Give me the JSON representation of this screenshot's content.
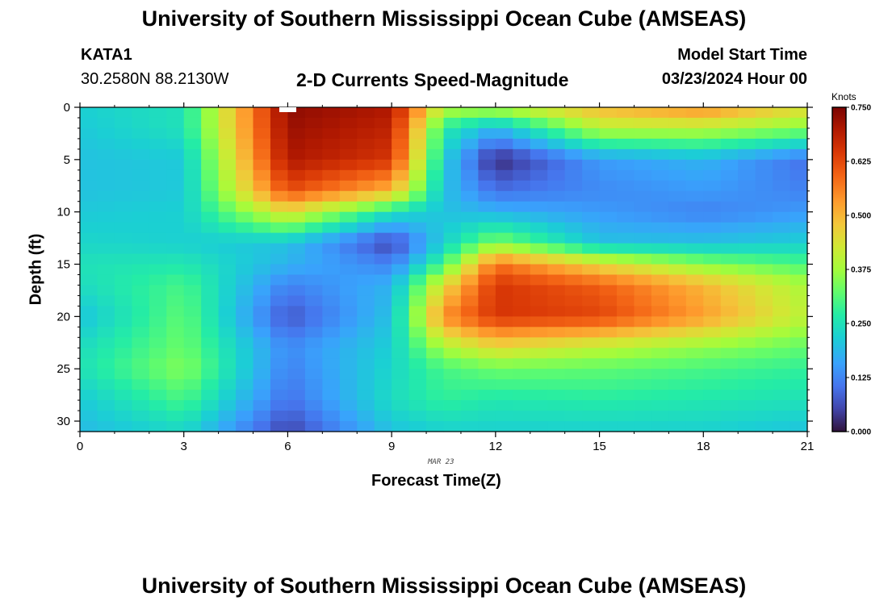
{
  "title": "University of Southern Mississippi Ocean Cube (AMSEAS)",
  "footer_title": "University of Southern Mississippi Ocean Cube (AMSEAS)",
  "station": {
    "name": "KATA1",
    "coords": "30.2580N  88.2130W"
  },
  "model_start": {
    "label": "Model Start Time",
    "value": "03/23/2024 Hour 00"
  },
  "chart_data": {
    "type": "heatmap",
    "title": "2-D Currents Speed-Magnitude",
    "xlabel": "Forecast Time(Z)",
    "ylabel": "Depth (ft)",
    "x_date_label": "MAR 23",
    "xlim": [
      0,
      21
    ],
    "ylim": [
      0,
      31
    ],
    "y_inverted": true,
    "x_ticks": [
      0,
      3,
      6,
      9,
      12,
      15,
      18,
      21
    ],
    "y_ticks": [
      0,
      5,
      10,
      15,
      20,
      25,
      30
    ],
    "colorbar": {
      "unit": "Knots",
      "min": 0.0,
      "max": 0.75,
      "ticks": [
        "0.000",
        "0.125",
        "0.250",
        "0.375",
        "0.500",
        "0.625",
        "0.750"
      ]
    },
    "x_hours": [
      0,
      3,
      6,
      9,
      10.5,
      12,
      15,
      18,
      21
    ],
    "depths_ft": [
      0,
      2,
      5,
      8,
      10,
      13,
      15,
      17,
      20,
      23,
      25,
      28,
      31
    ],
    "speed_knots": [
      [
        0.22,
        0.25,
        0.73,
        0.7,
        0.4,
        0.4,
        0.5,
        0.55,
        0.45
      ],
      [
        0.21,
        0.25,
        0.72,
        0.68,
        0.27,
        0.18,
        0.4,
        0.4,
        0.35
      ],
      [
        0.2,
        0.21,
        0.7,
        0.65,
        0.22,
        0.02,
        0.15,
        0.18,
        0.1
      ],
      [
        0.2,
        0.21,
        0.62,
        0.5,
        0.2,
        0.1,
        0.13,
        0.15,
        0.12
      ],
      [
        0.21,
        0.22,
        0.45,
        0.25,
        0.2,
        0.18,
        0.15,
        0.12,
        0.15
      ],
      [
        0.23,
        0.22,
        0.2,
        0.05,
        0.22,
        0.35,
        0.2,
        0.2,
        0.22
      ],
      [
        0.25,
        0.26,
        0.18,
        0.12,
        0.3,
        0.58,
        0.45,
        0.35,
        0.3
      ],
      [
        0.24,
        0.3,
        0.12,
        0.18,
        0.45,
        0.65,
        0.6,
        0.5,
        0.38
      ],
      [
        0.2,
        0.32,
        0.07,
        0.2,
        0.55,
        0.65,
        0.63,
        0.53,
        0.4
      ],
      [
        0.24,
        0.33,
        0.13,
        0.22,
        0.38,
        0.45,
        0.4,
        0.36,
        0.32
      ],
      [
        0.25,
        0.35,
        0.12,
        0.23,
        0.3,
        0.33,
        0.32,
        0.3,
        0.28
      ],
      [
        0.21,
        0.3,
        0.1,
        0.24,
        0.28,
        0.26,
        0.27,
        0.26,
        0.25
      ],
      [
        0.19,
        0.23,
        0.05,
        0.2,
        0.22,
        0.22,
        0.22,
        0.22,
        0.2
      ]
    ]
  }
}
